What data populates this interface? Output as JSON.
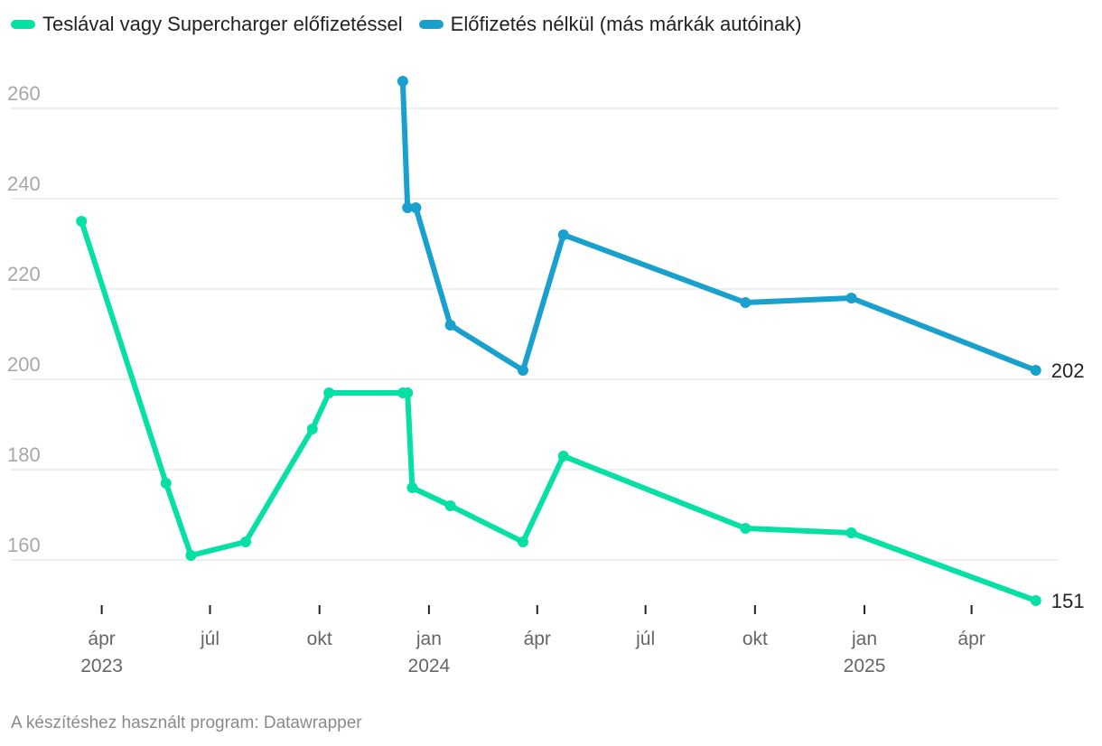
{
  "legend": {
    "items": [
      {
        "label": "Teslával vagy Supercharger előfizetéssel",
        "color": "#07e0a4"
      },
      {
        "label": "Előfizetés nélkül (más márkák autóinak)",
        "color": "#1aa0cd"
      }
    ]
  },
  "footer": {
    "credit": "A készítéshez használt program: Datawrapper"
  },
  "chart_data": {
    "type": "line",
    "title": "",
    "xlabel": "",
    "ylabel": "",
    "ylim": [
      150,
      266
    ],
    "y_ticks": [
      160,
      180,
      200,
      220,
      240,
      260
    ],
    "x_ticks": [
      {
        "date": "2023-04-01",
        "label": "ápr",
        "year": "2023"
      },
      {
        "date": "2023-07-01",
        "label": "júl",
        "year": ""
      },
      {
        "date": "2023-10-01",
        "label": "okt",
        "year": ""
      },
      {
        "date": "2024-01-01",
        "label": "jan",
        "year": "2024"
      },
      {
        "date": "2024-04-01",
        "label": "ápr",
        "year": ""
      },
      {
        "date": "2024-07-01",
        "label": "júl",
        "year": ""
      },
      {
        "date": "2024-10-01",
        "label": "okt",
        "year": ""
      },
      {
        "date": "2025-01-01",
        "label": "jan",
        "year": "2025"
      },
      {
        "date": "2025-04-01",
        "label": "ápr",
        "year": ""
      }
    ],
    "xlim": [
      "2023-03-08",
      "2025-05-29"
    ],
    "grid": true,
    "series": [
      {
        "name": "Teslával vagy Supercharger előfizetéssel",
        "color": "#07e0a4",
        "end_label": "151",
        "points": [
          {
            "x": "2023-03-15",
            "y": 235
          },
          {
            "x": "2023-05-25",
            "y": 177
          },
          {
            "x": "2023-06-15",
            "y": 161
          },
          {
            "x": "2023-07-31",
            "y": 164
          },
          {
            "x": "2023-09-25",
            "y": 189
          },
          {
            "x": "2023-10-09",
            "y": 197
          },
          {
            "x": "2023-12-10",
            "y": 197
          },
          {
            "x": "2023-12-14",
            "y": 197
          },
          {
            "x": "2023-12-18",
            "y": 176
          },
          {
            "x": "2024-01-19",
            "y": 172
          },
          {
            "x": "2024-03-20",
            "y": 164
          },
          {
            "x": "2024-04-23",
            "y": 183
          },
          {
            "x": "2024-09-23",
            "y": 167
          },
          {
            "x": "2024-12-21",
            "y": 166
          },
          {
            "x": "2025-05-25",
            "y": 151
          }
        ]
      },
      {
        "name": "Előfizetés nélkül (más márkák autóinak)",
        "color": "#1aa0cd",
        "end_label": "202",
        "points": [
          {
            "x": "2023-12-10",
            "y": 266
          },
          {
            "x": "2023-12-14",
            "y": 238
          },
          {
            "x": "2023-12-21",
            "y": 238
          },
          {
            "x": "2024-01-19",
            "y": 212
          },
          {
            "x": "2024-03-20",
            "y": 202
          },
          {
            "x": "2024-04-23",
            "y": 232
          },
          {
            "x": "2024-09-23",
            "y": 217
          },
          {
            "x": "2024-12-21",
            "y": 218
          },
          {
            "x": "2025-05-25",
            "y": 202
          }
        ]
      }
    ]
  }
}
